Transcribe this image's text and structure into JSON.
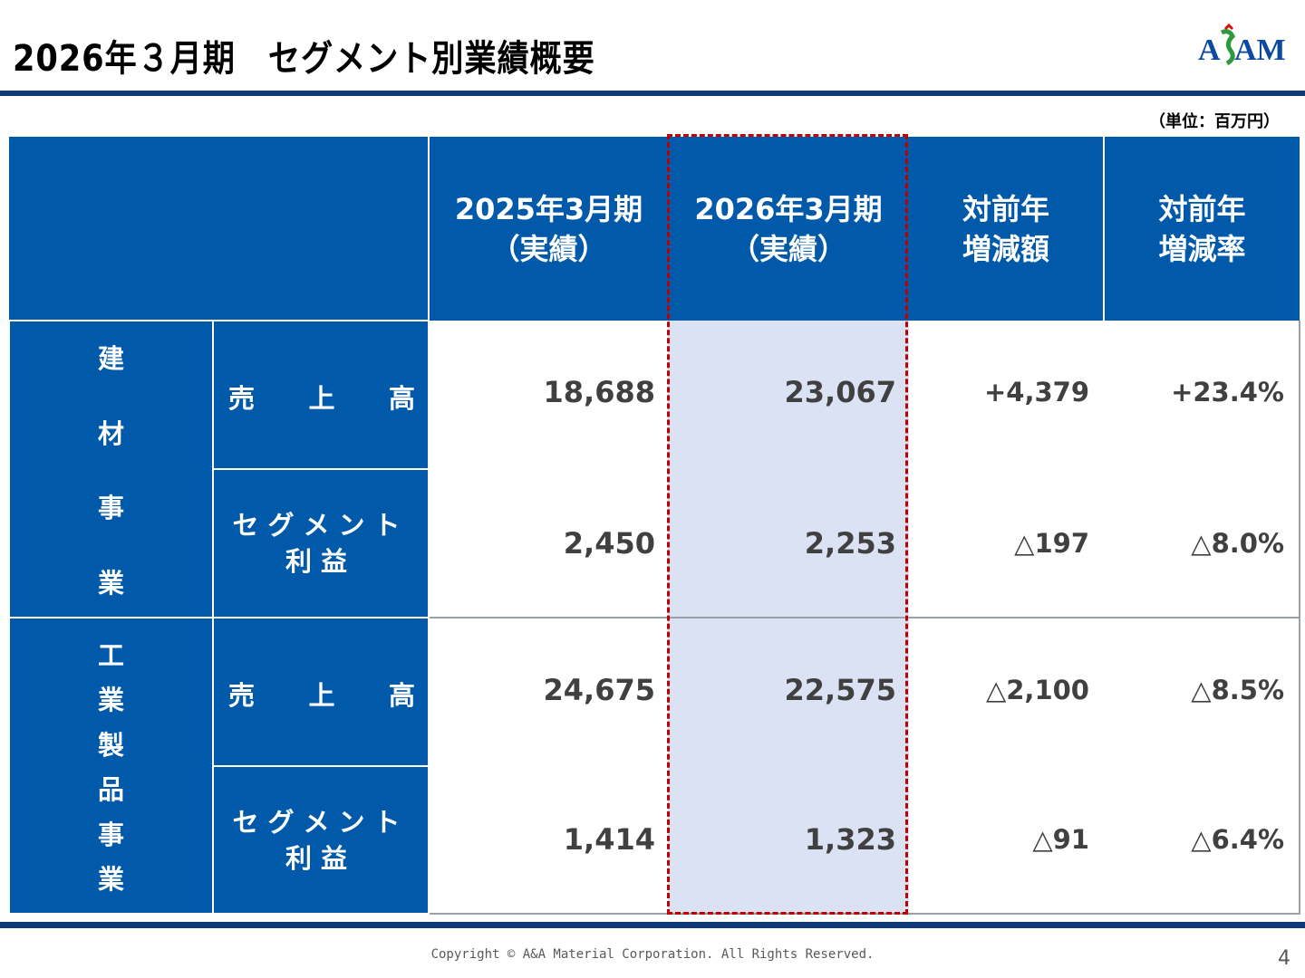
{
  "title": "2026年３月期　セグメント別業績概要",
  "logo_text": "A&AM",
  "unit": "（単位：百万円）",
  "headers": {
    "prev": [
      "2025年3月期",
      "（実績）"
    ],
    "curr": [
      "2026年3月期",
      "（実績）"
    ],
    "diff": [
      "対前年",
      "増減額"
    ],
    "rate": [
      "対前年",
      "増減率"
    ]
  },
  "segments": [
    {
      "name_chars": [
        "建",
        "材",
        "事",
        "業"
      ],
      "rows": [
        {
          "label_chars": [
            "売",
            "上",
            "高"
          ],
          "prev": "18,688",
          "curr": "23,067",
          "diff": "+4,379",
          "rate": "+23.4%"
        },
        {
          "label_lines": [
            "セグメント",
            "利益"
          ],
          "prev": "2,450",
          "curr": "2,253",
          "diff": "△197",
          "rate": "△8.0%"
        }
      ]
    },
    {
      "name_chars": [
        "工",
        "業",
        "製",
        "品",
        "事",
        "業"
      ],
      "rows": [
        {
          "label_chars": [
            "売",
            "上",
            "高"
          ],
          "prev": "24,675",
          "curr": "22,575",
          "diff": "△2,100",
          "rate": "△8.5%"
        },
        {
          "label_lines": [
            "セグメント",
            "利益"
          ],
          "prev": "1,414",
          "curr": "1,323",
          "diff": "△91",
          "rate": "△6.4%"
        }
      ]
    }
  ],
  "footer": {
    "copyright": "Copyright © A&A Material Corporation. All Rights Reserved.",
    "page": "4"
  },
  "colors": {
    "header_blue": "#0059a9",
    "highlight_fill": "#dae2f3",
    "highlight_border": "#c00000",
    "rule_navy": "#0e3a78"
  }
}
